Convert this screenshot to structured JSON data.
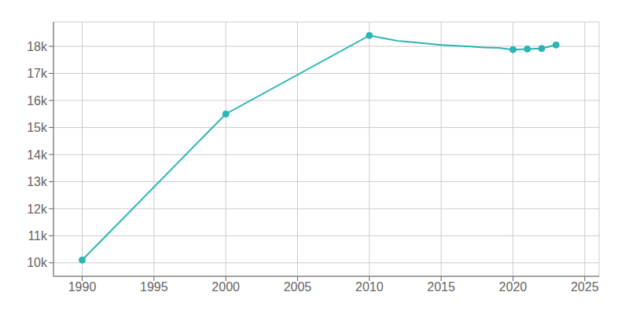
{
  "chart_data": {
    "type": "line",
    "x": [
      1990,
      2000,
      2010,
      2011,
      2012,
      2013,
      2014,
      2015,
      2016,
      2017,
      2018,
      2019,
      2020,
      2021,
      2022,
      2023
    ],
    "values": [
      10100,
      15500,
      18400,
      18300,
      18200,
      18150,
      18100,
      18050,
      18020,
      17990,
      17960,
      17940,
      17880,
      17900,
      17920,
      18050
    ],
    "color": "#2ab5b5",
    "markers": [
      1990,
      2000,
      2010,
      2020,
      2021,
      2022,
      2023
    ],
    "xlim": [
      1988,
      2026
    ],
    "xticks": [
      1990,
      1995,
      2000,
      2005,
      2010,
      2015,
      2020,
      2025
    ],
    "ylim": [
      9500,
      18900
    ],
    "yticks": [
      {
        "value": 10000,
        "label": "10k"
      },
      {
        "value": 11000,
        "label": "11k"
      },
      {
        "value": 12000,
        "label": "12k"
      },
      {
        "value": 13000,
        "label": "13k"
      },
      {
        "value": 14000,
        "label": "14k"
      },
      {
        "value": 15000,
        "label": "15k"
      },
      {
        "value": 16000,
        "label": "16k"
      },
      {
        "value": 17000,
        "label": "17k"
      },
      {
        "value": 18000,
        "label": "18k"
      }
    ],
    "grid": true
  }
}
